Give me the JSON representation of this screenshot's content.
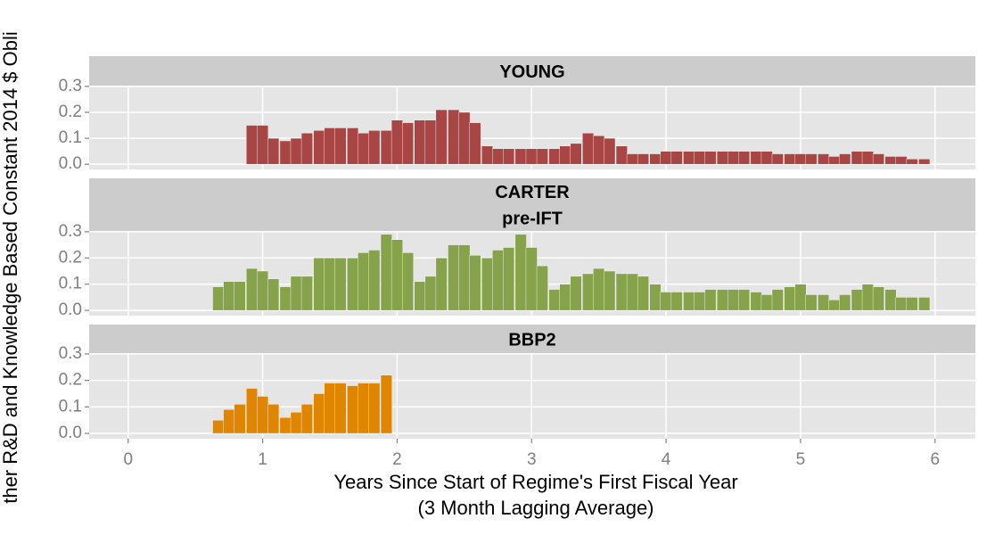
{
  "chart_data": [
    {
      "type": "bar",
      "title": "YOUNG",
      "color": "#a84645",
      "x": [
        0.92,
        1,
        1.08,
        1.17,
        1.25,
        1.33,
        1.42,
        1.5,
        1.58,
        1.67,
        1.75,
        1.83,
        1.92,
        2,
        2.08,
        2.17,
        2.25,
        2.33,
        2.42,
        2.5,
        2.58,
        2.67,
        2.75,
        2.83,
        2.92,
        3,
        3.08,
        3.17,
        3.25,
        3.33,
        3.42,
        3.5,
        3.58,
        3.67,
        3.75,
        3.83,
        3.92,
        4,
        4.08,
        4.17,
        4.25,
        4.33,
        4.42,
        4.5,
        4.58,
        4.67,
        4.75,
        4.83,
        4.92,
        5,
        5.08,
        5.17,
        5.25,
        5.33,
        5.42,
        5.5,
        5.58,
        5.67,
        5.75,
        5.83,
        5.92
      ],
      "values": [
        0.15,
        0.15,
        0.1,
        0.09,
        0.1,
        0.12,
        0.13,
        0.14,
        0.14,
        0.14,
        0.12,
        0.13,
        0.13,
        0.17,
        0.16,
        0.17,
        0.17,
        0.21,
        0.21,
        0.2,
        0.16,
        0.07,
        0.06,
        0.06,
        0.06,
        0.06,
        0.06,
        0.06,
        0.07,
        0.08,
        0.12,
        0.11,
        0.1,
        0.07,
        0.04,
        0.04,
        0.04,
        0.05,
        0.05,
        0.05,
        0.05,
        0.05,
        0.05,
        0.05,
        0.05,
        0.05,
        0.05,
        0.04,
        0.04,
        0.04,
        0.04,
        0.04,
        0.03,
        0.04,
        0.05,
        0.05,
        0.04,
        0.03,
        0.03,
        0.02,
        0.02
      ],
      "xlim": [
        -0.29,
        6.3
      ],
      "ylim": [
        -0.02,
        0.303
      ],
      "xticks": [
        0,
        1,
        2,
        3,
        4,
        5,
        6
      ],
      "yticks": [
        {
          "value": 0,
          "label": "0.0"
        },
        0.1,
        0.2,
        0.3
      ],
      "grid": true
    },
    {
      "type": "bar",
      "title": [
        "CARTER",
        "pre-IFT"
      ],
      "color": "#86a34b",
      "ylabel": "ther R&D and Knowledge Based Constant 2014 $ Obli",
      "x": [
        0.67,
        0.75,
        0.83,
        0.92,
        1,
        1.08,
        1.17,
        1.25,
        1.33,
        1.42,
        1.5,
        1.58,
        1.67,
        1.75,
        1.83,
        1.92,
        2,
        2.08,
        2.17,
        2.25,
        2.33,
        2.42,
        2.5,
        2.58,
        2.67,
        2.75,
        2.83,
        2.92,
        3,
        3.08,
        3.17,
        3.25,
        3.33,
        3.42,
        3.5,
        3.58,
        3.67,
        3.75,
        3.83,
        3.92,
        4,
        4.08,
        4.17,
        4.25,
        4.33,
        4.42,
        4.5,
        4.58,
        4.67,
        4.75,
        4.83,
        4.92,
        5,
        5.08,
        5.17,
        5.25,
        5.33,
        5.42,
        5.5,
        5.58,
        5.67,
        5.75,
        5.83,
        5.92
      ],
      "values": [
        0.09,
        0.11,
        0.11,
        0.16,
        0.15,
        0.12,
        0.09,
        0.13,
        0.13,
        0.2,
        0.2,
        0.2,
        0.2,
        0.22,
        0.23,
        0.29,
        0.27,
        0.22,
        0.11,
        0.13,
        0.2,
        0.25,
        0.25,
        0.21,
        0.2,
        0.23,
        0.24,
        0.29,
        0.24,
        0.17,
        0.08,
        0.1,
        0.13,
        0.14,
        0.16,
        0.15,
        0.14,
        0.14,
        0.13,
        0.1,
        0.07,
        0.07,
        0.07,
        0.07,
        0.08,
        0.08,
        0.08,
        0.08,
        0.07,
        0.06,
        0.08,
        0.09,
        0.1,
        0.06,
        0.06,
        0.04,
        0.06,
        0.08,
        0.1,
        0.09,
        0.08,
        0.05,
        0.05,
        0.05
      ],
      "xlim": [
        -0.29,
        6.3
      ],
      "ylim": [
        -0.02,
        0.303
      ],
      "xticks": [
        0,
        1,
        2,
        3,
        4,
        5,
        6
      ],
      "yticks": [
        {
          "value": 0,
          "label": "0.0"
        },
        0.1,
        0.2,
        0.3
      ],
      "grid": true
    },
    {
      "type": "bar",
      "title": "BBP2",
      "color": "#df8500",
      "xlabel": [
        "Years Since Start of Regime's First Fiscal Year",
        "(3 Month Lagging Average)"
      ],
      "x": [
        0.67,
        0.75,
        0.83,
        0.92,
        1,
        1.08,
        1.17,
        1.25,
        1.33,
        1.42,
        1.5,
        1.58,
        1.67,
        1.75,
        1.83,
        1.92
      ],
      "values": [
        0.05,
        0.09,
        0.11,
        0.17,
        0.14,
        0.11,
        0.06,
        0.08,
        0.11,
        0.15,
        0.19,
        0.19,
        0.18,
        0.19,
        0.19,
        0.22
      ],
      "xlim": [
        -0.29,
        6.3
      ],
      "ylim": [
        -0.02,
        0.303
      ],
      "xticks": [
        0,
        1,
        2,
        3,
        4,
        5,
        6
      ],
      "yticks": [
        {
          "value": 0,
          "label": "0.0"
        },
        0.1,
        0.2,
        0.3
      ],
      "grid": true
    }
  ]
}
